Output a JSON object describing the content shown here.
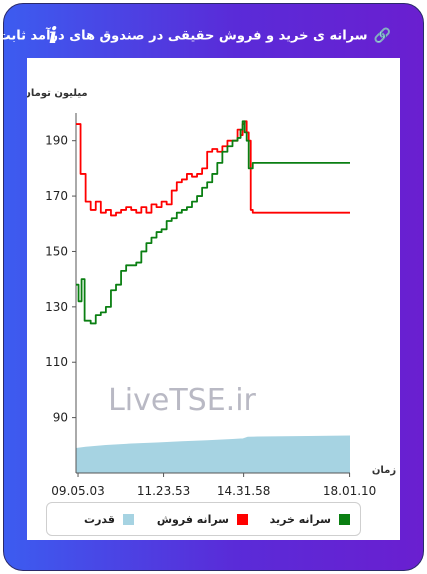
{
  "title": "سرانه ی خرید و فروش حقیقی در صندوق های درآمد ثابت",
  "icons": {
    "info": "info-icon",
    "link": "link-icon"
  },
  "colors": {
    "buy": "#0a7f12",
    "sell": "#ff0000",
    "power": "#a6d3e2"
  },
  "watermark": "LiveTSE.ir",
  "legend": {
    "buy": "سرانه خرید",
    "sell": "سرانه فروش",
    "power": "قدرت"
  },
  "chart_data": {
    "type": "line",
    "ylabel": "میلیون تومان",
    "xlabel": "زمان",
    "y_ticks": [
      90,
      110,
      130,
      150,
      170,
      190
    ],
    "ylim": [
      70,
      200
    ],
    "x_ticks": [
      "09.05.03",
      "11.23.53",
      "14.31.58",
      "18.01.10"
    ],
    "x_tick_minutes": [
      545,
      713.9,
      871.97,
      1081.17
    ],
    "xlim_minutes": [
      541,
      1082
    ],
    "grid": false,
    "legend_position": "bottom",
    "series": [
      {
        "name": "سرانه فروش",
        "color": "#ff0000",
        "x": [
          541,
          550,
          560,
          570,
          580,
          590,
          600,
          610,
          620,
          630,
          640,
          650,
          660,
          670,
          680,
          690,
          700,
          710,
          720,
          730,
          740,
          750,
          760,
          770,
          780,
          790,
          800,
          810,
          820,
          830,
          840,
          850,
          860,
          866,
          870,
          874,
          878,
          882,
          886,
          890,
          900,
          940,
          1000,
          1082
        ],
        "y": [
          196,
          178,
          168,
          165,
          168,
          164,
          165,
          163,
          164,
          165,
          166,
          165,
          164,
          166,
          164,
          167,
          166,
          168,
          167,
          172,
          175,
          176,
          178,
          177,
          178,
          180,
          186,
          187,
          186,
          188,
          190,
          190,
          194,
          192,
          196,
          197,
          193,
          190,
          165,
          164,
          164,
          164,
          164,
          164
        ]
      },
      {
        "name": "سرانه خرید",
        "color": "#0a7f12",
        "x": [
          541,
          546,
          552,
          558,
          570,
          580,
          590,
          600,
          610,
          620,
          630,
          640,
          650,
          660,
          670,
          680,
          690,
          700,
          710,
          720,
          730,
          740,
          750,
          760,
          770,
          780,
          790,
          800,
          810,
          820,
          830,
          840,
          850,
          860,
          866,
          870,
          874,
          878,
          882,
          886,
          890,
          900,
          940,
          1000,
          1082
        ],
        "y": [
          138,
          132,
          140,
          125,
          124,
          127,
          128,
          130,
          136,
          138,
          143,
          145,
          145,
          146,
          150,
          153,
          155,
          157,
          158,
          161,
          162,
          164,
          165,
          166,
          168,
          170,
          173,
          175,
          178,
          182,
          186,
          188,
          190,
          191,
          194,
          197,
          193,
          190,
          180,
          180,
          182,
          182,
          182,
          182,
          182
        ]
      },
      {
        "name": "قدرت",
        "color": "#a6d3e2",
        "type": "area",
        "x": [
          541,
          560,
          600,
          650,
          700,
          750,
          800,
          850,
          866,
          870,
          880,
          900,
          1000,
          1082
        ],
        "y": [
          1.0,
          1.05,
          1.12,
          1.18,
          1.22,
          1.27,
          1.31,
          1.36,
          1.38,
          1.38,
          1.45,
          1.46,
          1.48,
          1.5
        ],
        "ylim": [
          0,
          2.2
        ]
      }
    ]
  }
}
